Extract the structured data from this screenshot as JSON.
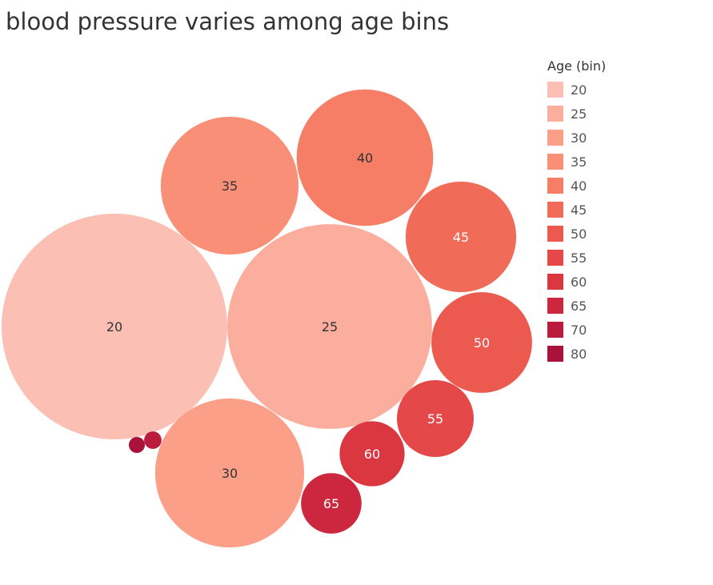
{
  "chart_data": {
    "type": "packed-bubble",
    "title": "blood pressure varies among age bins",
    "legend": {
      "title": "Age (bin)",
      "position": "right",
      "entries": [
        {
          "label": "20",
          "color": "#fcbfb4"
        },
        {
          "label": "25",
          "color": "#fcae9e"
        },
        {
          "label": "30",
          "color": "#fb9f89"
        },
        {
          "label": "35",
          "color": "#f98f77"
        },
        {
          "label": "40",
          "color": "#f67e67"
        },
        {
          "label": "45",
          "color": "#f16b59"
        },
        {
          "label": "50",
          "color": "#ec5a4f"
        },
        {
          "label": "55",
          "color": "#e44848"
        },
        {
          "label": "60",
          "color": "#da3741"
        },
        {
          "label": "65",
          "color": "#cc273e"
        },
        {
          "label": "70",
          "color": "#bb1b3d"
        },
        {
          "label": "80",
          "color": "#a8123b"
        }
      ]
    },
    "bubbles": [
      {
        "label": "20",
        "value": 1000,
        "color": "#fcbfb4"
      },
      {
        "label": "25",
        "value": 823,
        "color": "#fcae9e"
      },
      {
        "label": "30",
        "value": 436,
        "color": "#fb9f89"
      },
      {
        "label": "35",
        "value": 373,
        "color": "#f98f77"
      },
      {
        "label": "40",
        "value": 366,
        "color": "#f67e67"
      },
      {
        "label": "45",
        "value": 240,
        "color": "#f16b59"
      },
      {
        "label": "50",
        "value": 199,
        "color": "#ec5a4f"
      },
      {
        "label": "55",
        "value": 116,
        "color": "#e44848"
      },
      {
        "label": "60",
        "value": 83,
        "color": "#da3741"
      },
      {
        "label": "65",
        "value": 72,
        "color": "#cc273e"
      },
      {
        "label": "70",
        "value": 6,
        "color": "#bb1b3d",
        "label_visible": false
      },
      {
        "label": "80",
        "value": 5,
        "color": "#a8123b",
        "label_visible": false
      }
    ]
  }
}
